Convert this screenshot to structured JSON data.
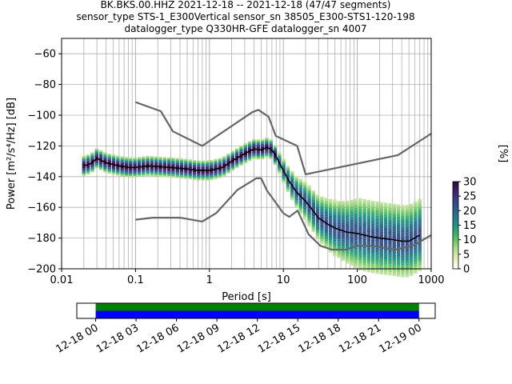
{
  "title_lines": [
    "BK.BKS.00.HHZ   2021-12-18 -- 2021-12-18  (47/47 segments)",
    "sensor_type STS-1_E300Vertical sensor_sn 38505_E300-STS1-120-198",
    "datalogger_type Q330HR-GFE datalogger_sn 4007"
  ],
  "chart_data": {
    "type": "ppsd",
    "xlabel": "Period [s]",
    "ylabel": "Power [m²/s⁴/Hz] [dB]",
    "xscale": "log",
    "xlim": [
      0.01,
      1000
    ],
    "ylim": [
      -200,
      -50
    ],
    "xticks": [
      {
        "value": 0.01,
        "label": "0.01"
      },
      {
        "value": 0.1,
        "label": "0.1"
      },
      {
        "value": 1,
        "label": "1"
      },
      {
        "value": 10,
        "label": "10"
      },
      {
        "value": 100,
        "label": "100"
      },
      {
        "value": 1000,
        "label": "1000"
      }
    ],
    "yticks": [
      -60,
      -80,
      -100,
      -120,
      -140,
      -160,
      -180,
      -200
    ],
    "grid": true,
    "nhnm": {
      "x": [
        0.1,
        0.22,
        0.32,
        0.8,
        3.8,
        4.6,
        6.3,
        7.9,
        15.4,
        20,
        354.8,
        1000
      ],
      "y": [
        -91.5,
        -97.4,
        -110.5,
        -120,
        -98,
        -96.5,
        -101,
        -113.5,
        -120,
        -138.5,
        -126,
        -112
      ]
    },
    "nlnm": {
      "x": [
        0.1,
        0.17,
        0.4,
        0.8,
        1.24,
        2.4,
        4.3,
        5,
        6,
        10,
        12,
        15.6,
        21.9,
        31.6,
        45,
        70,
        101,
        154,
        328,
        600,
        1000
      ],
      "y": [
        -168,
        -166.7,
        -166.7,
        -169.2,
        -163.7,
        -148.6,
        -141.1,
        -141.1,
        -149,
        -163.8,
        -166.2,
        -162.1,
        -177.5,
        -185,
        -187.5,
        -187.5,
        -185,
        -185,
        -187.5,
        -184.4,
        -178
      ]
    },
    "mean": {
      "x": [
        0.02,
        0.025,
        0.03,
        0.04,
        0.06,
        0.08,
        0.1,
        0.15,
        0.2,
        0.3,
        0.5,
        0.7,
        1,
        1.5,
        2,
        3,
        4,
        5,
        6,
        7,
        8,
        10,
        12,
        15,
        20,
        25,
        30,
        40,
        50,
        70,
        100,
        150,
        200,
        300,
        400,
        500,
        700
      ],
      "y": [
        -133,
        -131.5,
        -128,
        -131,
        -133,
        -134,
        -134,
        -133,
        -133.5,
        -134,
        -135,
        -136,
        -136,
        -134,
        -130,
        -125,
        -122,
        -122.5,
        -121,
        -122.5,
        -127,
        -136,
        -143,
        -150,
        -156,
        -162,
        -167,
        -171,
        -173.5,
        -176,
        -177,
        -179,
        -180,
        -181,
        -182,
        -182,
        -178
      ]
    },
    "colorbar": {
      "label": "[%]",
      "min": 0,
      "max": 30,
      "ticks": [
        0,
        5,
        10,
        15,
        20,
        25,
        30
      ],
      "colormap": [
        "#ffffff",
        "#e8f3bf",
        "#bfe39a",
        "#7fcd6b",
        "#3bb26b",
        "#1f9583",
        "#227a8e",
        "#2c5a8c",
        "#3b3d86",
        "#3f1d6a",
        "#2b0a3d"
      ]
    },
    "coverage": {
      "start": "2021-12-18 00:00",
      "end": "2021-12-19 00:00",
      "xlim_hours": [
        -1.4,
        25.2
      ],
      "xticks": [
        {
          "hours": 0,
          "label": "12-18 00"
        },
        {
          "hours": 3,
          "label": "12-18 03"
        },
        {
          "hours": 6,
          "label": "12-18 06"
        },
        {
          "hours": 9,
          "label": "12-18 09"
        },
        {
          "hours": 12,
          "label": "12-18 12"
        },
        {
          "hours": 15,
          "label": "12-18 15"
        },
        {
          "hours": 18,
          "label": "12-18 18"
        },
        {
          "hours": 21,
          "label": "12-18 21"
        },
        {
          "hours": 24,
          "label": "12-19 00"
        }
      ],
      "bars": [
        {
          "start_hours": 0,
          "end_hours": 24,
          "color": "#008000"
        },
        {
          "start_hours": 0,
          "end_hours": 24,
          "color": "#0000ff"
        }
      ]
    }
  }
}
